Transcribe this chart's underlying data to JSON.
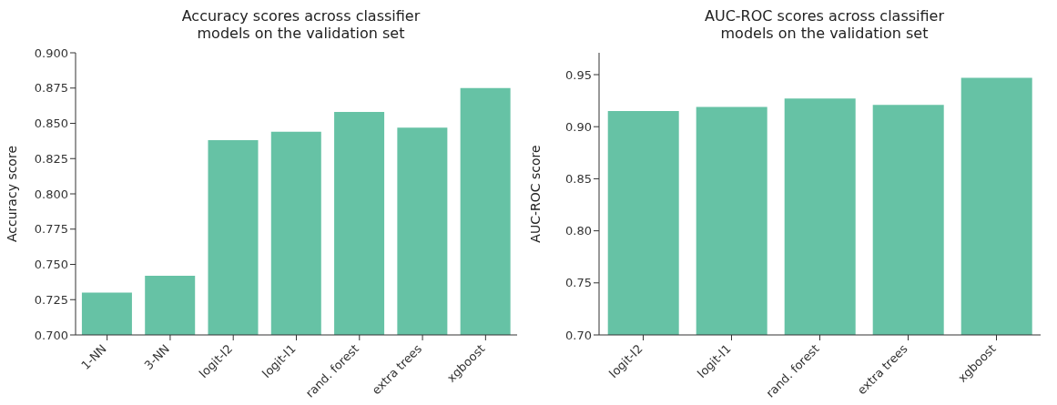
{
  "chart_data": [
    {
      "type": "bar",
      "title": "Accuracy scores across classifier\nmodels on the validation set",
      "ylabel": "Accuracy score",
      "categories": [
        "1-NN",
        "3-NN",
        "logit-l2",
        "logit-l1",
        "rand. forest",
        "extra trees",
        "xgboost"
      ],
      "values": [
        0.73,
        0.742,
        0.838,
        0.844,
        0.858,
        0.847,
        0.875
      ],
      "color": "#66c2a5",
      "ylim": [
        0.7,
        0.9
      ],
      "yticks": [
        {
          "value": 0.7,
          "label": "0.700"
        },
        {
          "value": 0.725,
          "label": "0.725"
        },
        {
          "value": 0.75,
          "label": "0.750"
        },
        {
          "value": 0.775,
          "label": "0.775"
        },
        {
          "value": 0.8,
          "label": "0.800"
        },
        {
          "value": 0.825,
          "label": "0.825"
        },
        {
          "value": 0.85,
          "label": "0.850"
        },
        {
          "value": 0.875,
          "label": "0.875"
        },
        {
          "value": 0.9,
          "label": "0.900"
        }
      ]
    },
    {
      "type": "bar",
      "title": "AUC-ROC scores across classifier\nmodels on the validation set",
      "ylabel": "AUC-ROC score",
      "categories": [
        "logit-l2",
        "logit-l1",
        "rand. forest",
        "extra trees",
        "xgboost"
      ],
      "values": [
        0.915,
        0.919,
        0.927,
        0.921,
        0.947
      ],
      "color": "#66c2a5",
      "ylim": [
        0.7,
        0.971
      ],
      "yticks": [
        {
          "value": 0.7,
          "label": "0.70"
        },
        {
          "value": 0.75,
          "label": "0.75"
        },
        {
          "value": 0.8,
          "label": "0.80"
        },
        {
          "value": 0.85,
          "label": "0.85"
        },
        {
          "value": 0.9,
          "label": "0.90"
        },
        {
          "value": 0.95,
          "label": "0.95"
        }
      ]
    }
  ]
}
